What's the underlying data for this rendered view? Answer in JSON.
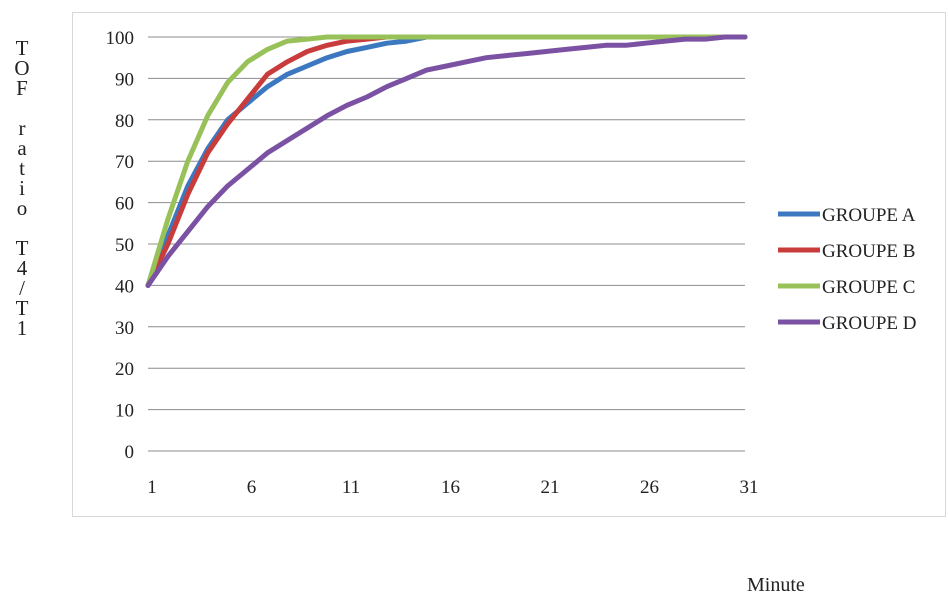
{
  "chart_data": {
    "type": "line",
    "ylabel": "TOF ratio T4/T1",
    "xlabel": "Minute",
    "xlim": [
      1,
      31
    ],
    "ylim": [
      0,
      100
    ],
    "x_ticks": [
      1,
      6,
      11,
      16,
      21,
      26,
      31
    ],
    "y_ticks": [
      0,
      10,
      20,
      30,
      40,
      50,
      60,
      70,
      80,
      90,
      100
    ],
    "grid": true,
    "legend_position": "right",
    "x": [
      1,
      2,
      3,
      4,
      5,
      6,
      7,
      8,
      9,
      10,
      11,
      12,
      13,
      14,
      15,
      16,
      17,
      18,
      19,
      20,
      21,
      22,
      23,
      24,
      25,
      26,
      27,
      28,
      29,
      30,
      31
    ],
    "series": [
      {
        "name": "GROUPE A",
        "color": "#3b78c0",
        "values": [
          40,
          52,
          64,
          73,
          80,
          84,
          88,
          91,
          93,
          95,
          96.5,
          97.5,
          98.5,
          99,
          100,
          100,
          100,
          100,
          100,
          100,
          100,
          100,
          100,
          100,
          100,
          100,
          100,
          100,
          100,
          100,
          100
        ]
      },
      {
        "name": "GROUPE B",
        "color": "#c93c3c",
        "values": [
          40,
          50,
          62,
          72,
          79,
          85,
          91,
          94,
          96.5,
          98,
          99,
          99.5,
          100,
          100,
          100,
          100,
          100,
          100,
          100,
          100,
          100,
          100,
          100,
          100,
          100,
          100,
          100,
          100,
          100,
          100,
          100
        ]
      },
      {
        "name": "GROUPE C",
        "color": "#98c159",
        "values": [
          40,
          56,
          70,
          81,
          89,
          94,
          97,
          99,
          99.5,
          100,
          100,
          100,
          100,
          100,
          100,
          100,
          100,
          100,
          100,
          100,
          100,
          100,
          100,
          100,
          100,
          100,
          100,
          100,
          100,
          100,
          100
        ]
      },
      {
        "name": "GROUPE D",
        "color": "#7b52a3",
        "values": [
          40,
          47,
          53,
          59,
          64,
          68,
          72,
          75,
          78,
          81,
          83.5,
          85.5,
          88,
          90,
          92,
          93,
          94,
          95,
          95.5,
          96,
          96.5,
          97,
          97.5,
          98,
          98,
          98.5,
          99,
          99.5,
          99.5,
          100,
          100
        ]
      }
    ]
  }
}
